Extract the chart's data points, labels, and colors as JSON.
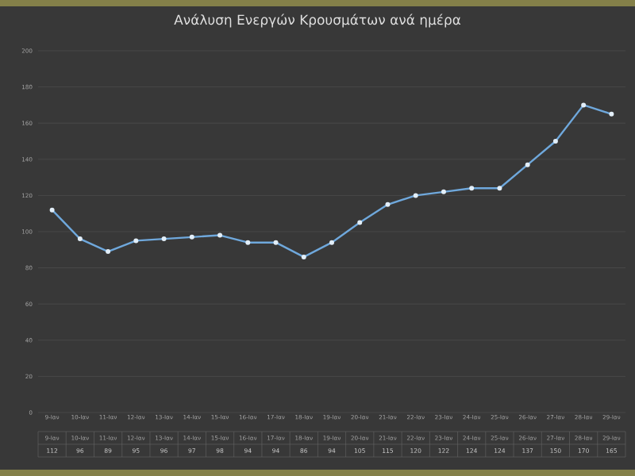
{
  "chart_data": {
    "type": "line",
    "title": "Ανάλυση Ενεργών Κρουσμάτων ανά ημέρα",
    "categories": [
      "9-Ιαν",
      "10-Ιαν",
      "11-Ιαν",
      "12-Ιαν",
      "13-Ιαν",
      "14-Ιαν",
      "15-Ιαν",
      "16-Ιαν",
      "17-Ιαν",
      "18-Ιαν",
      "19-Ιαν",
      "20-Ιαν",
      "21-Ιαν",
      "22-Ιαν",
      "23-Ιαν",
      "24-Ιαν",
      "25-Ιαν",
      "26-Ιαν",
      "27-Ιαν",
      "28-Ιαν",
      "29-Ιαν"
    ],
    "values": [
      112,
      96,
      89,
      95,
      96,
      97,
      98,
      94,
      94,
      86,
      94,
      105,
      115,
      120,
      122,
      124,
      124,
      137,
      150,
      170,
      165
    ],
    "color": "#6fa8dc",
    "ylim": [
      0,
      200
    ],
    "yticks": [
      0,
      20,
      40,
      60,
      80,
      100,
      120,
      140,
      160,
      180,
      200
    ],
    "grid": "y",
    "marker": "circle",
    "data_labels": true
  }
}
